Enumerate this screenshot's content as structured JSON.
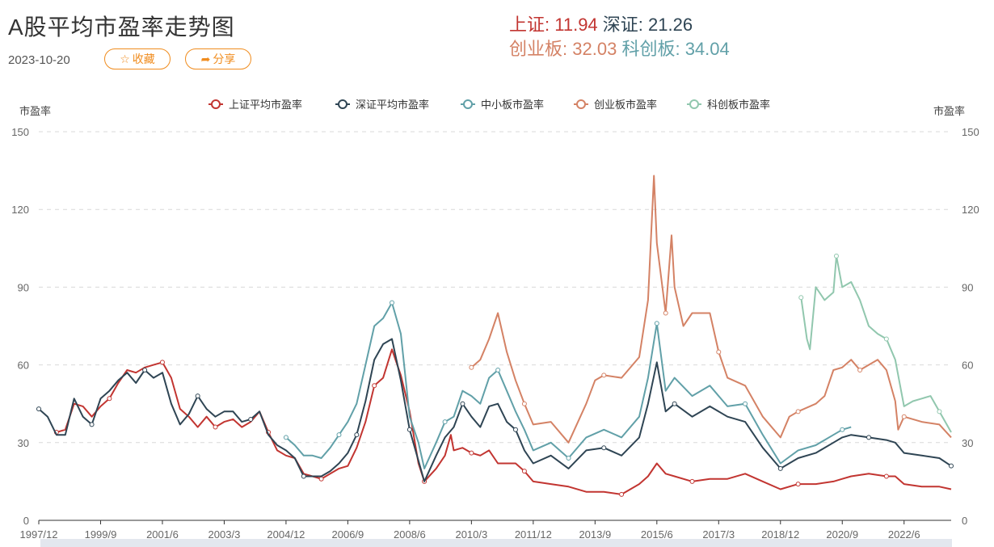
{
  "header": {
    "title": "A股平均市盈率走势图",
    "date": "2023-10-20",
    "fav_label": "收藏",
    "share_label": "分享",
    "fav_icon": "star-outline-icon",
    "share_icon": "share-arrow-icon",
    "accent": "#f08c1e"
  },
  "summary": {
    "sh_label": "上证:",
    "sh_value": "11.94",
    "sz_label": "深证:",
    "sz_value": "21.26",
    "cy_label": "创业板:",
    "cy_value": "32.03",
    "kc_label": "科创板:",
    "kc_value": "34.04",
    "colors": {
      "sh": "#c23531",
      "sz": "#2f4554",
      "cy": "#d48265",
      "kc": "#61a0a8"
    }
  },
  "chart_data": {
    "type": "line",
    "ylabel_left": "市盈率",
    "ylabel_right": "市盈率",
    "ylim": [
      0,
      150
    ],
    "yticks": [
      0,
      30,
      60,
      90,
      120,
      150
    ],
    "grid": true,
    "legend_position": "top-center",
    "x_range": [
      "1997/12",
      "2023/10"
    ],
    "x_ticks": [
      "1997/12",
      "1999/9",
      "2001/6",
      "2003/3",
      "2004/12",
      "2006/9",
      "2008/6",
      "2010/3",
      "2011/12",
      "2013/9",
      "2015/6",
      "2017/3",
      "2018/12",
      "2020/9",
      "2022/6"
    ],
    "series": [
      {
        "name": "上证平均市盈率",
        "color": "#c23531",
        "points": [
          [
            "1998/6",
            34
          ],
          [
            "1998/9",
            35
          ],
          [
            "1998/12",
            45
          ],
          [
            "1999/3",
            44
          ],
          [
            "1999/6",
            40
          ],
          [
            "1999/9",
            44
          ],
          [
            "1999/12",
            47
          ],
          [
            "2000/3",
            53
          ],
          [
            "2000/6",
            58
          ],
          [
            "2000/9",
            57
          ],
          [
            "2000/12",
            59
          ],
          [
            "2001/3",
            60
          ],
          [
            "2001/6",
            61
          ],
          [
            "2001/9",
            55
          ],
          [
            "2001/12",
            43
          ],
          [
            "2002/3",
            40
          ],
          [
            "2002/6",
            36
          ],
          [
            "2002/9",
            40
          ],
          [
            "2002/12",
            36
          ],
          [
            "2003/3",
            38
          ],
          [
            "2003/6",
            39
          ],
          [
            "2003/9",
            36
          ],
          [
            "2003/12",
            38
          ],
          [
            "2004/3",
            42
          ],
          [
            "2004/6",
            34
          ],
          [
            "2004/9",
            27
          ],
          [
            "2004/12",
            25
          ],
          [
            "2005/3",
            24
          ],
          [
            "2005/6",
            18
          ],
          [
            "2005/9",
            17
          ],
          [
            "2005/12",
            16
          ],
          [
            "2006/3",
            18
          ],
          [
            "2006/6",
            20
          ],
          [
            "2006/9",
            21
          ],
          [
            "2006/12",
            28
          ],
          [
            "2007/3",
            38
          ],
          [
            "2007/6",
            52
          ],
          [
            "2007/9",
            55
          ],
          [
            "2007/12",
            66
          ],
          [
            "2008/3",
            56
          ],
          [
            "2008/6",
            42
          ],
          [
            "2008/9",
            22
          ],
          [
            "2008/11",
            15
          ],
          [
            "2009/3",
            20
          ],
          [
            "2009/6",
            25
          ],
          [
            "2009/8",
            33
          ],
          [
            "2009/9",
            27
          ],
          [
            "2009/12",
            28
          ],
          [
            "2010/3",
            26
          ],
          [
            "2010/6",
            25
          ],
          [
            "2010/9",
            27
          ],
          [
            "2010/12",
            22
          ],
          [
            "2011/3",
            22
          ],
          [
            "2011/6",
            22
          ],
          [
            "2011/9",
            19
          ],
          [
            "2011/12",
            15
          ],
          [
            "2012/6",
            14
          ],
          [
            "2012/12",
            13
          ],
          [
            "2013/6",
            11
          ],
          [
            "2013/12",
            11
          ],
          [
            "2014/6",
            10
          ],
          [
            "2014/12",
            14
          ],
          [
            "2015/3",
            17
          ],
          [
            "2015/6",
            22
          ],
          [
            "2015/9",
            18
          ],
          [
            "2015/12",
            17
          ],
          [
            "2016/6",
            15
          ],
          [
            "2016/12",
            16
          ],
          [
            "2017/6",
            16
          ],
          [
            "2017/12",
            18
          ],
          [
            "2018/6",
            15
          ],
          [
            "2018/12",
            12
          ],
          [
            "2019/6",
            14
          ],
          [
            "2019/12",
            14
          ],
          [
            "2020/6",
            15
          ],
          [
            "2020/9",
            16
          ],
          [
            "2020/12",
            17
          ],
          [
            "2021/6",
            18
          ],
          [
            "2021/12",
            17
          ],
          [
            "2022/3",
            17
          ],
          [
            "2022/6",
            14
          ],
          [
            "2022/12",
            13
          ],
          [
            "2023/6",
            13
          ],
          [
            "2023/10",
            12
          ]
        ]
      },
      {
        "name": "深证平均市盈率",
        "color": "#2f4554",
        "points": [
          [
            "1997/12",
            43
          ],
          [
            "1998/3",
            40
          ],
          [
            "1998/6",
            33
          ],
          [
            "1998/9",
            33
          ],
          [
            "1998/12",
            47
          ],
          [
            "1999/3",
            40
          ],
          [
            "1999/6",
            37
          ],
          [
            "1999/9",
            47
          ],
          [
            "1999/12",
            50
          ],
          [
            "2000/3",
            54
          ],
          [
            "2000/6",
            57
          ],
          [
            "2000/9",
            53
          ],
          [
            "2000/12",
            58
          ],
          [
            "2001/3",
            55
          ],
          [
            "2001/6",
            57
          ],
          [
            "2001/9",
            45
          ],
          [
            "2001/12",
            37
          ],
          [
            "2002/3",
            41
          ],
          [
            "2002/6",
            48
          ],
          [
            "2002/9",
            43
          ],
          [
            "2002/12",
            40
          ],
          [
            "2003/3",
            42
          ],
          [
            "2003/6",
            42
          ],
          [
            "2003/9",
            38
          ],
          [
            "2003/12",
            39
          ],
          [
            "2004/3",
            42
          ],
          [
            "2004/6",
            33
          ],
          [
            "2004/9",
            29
          ],
          [
            "2004/12",
            27
          ],
          [
            "2005/3",
            24
          ],
          [
            "2005/6",
            17
          ],
          [
            "2005/9",
            17
          ],
          [
            "2005/12",
            17
          ],
          [
            "2006/3",
            19
          ],
          [
            "2006/6",
            22
          ],
          [
            "2006/9",
            26
          ],
          [
            "2006/12",
            33
          ],
          [
            "2007/3",
            46
          ],
          [
            "2007/6",
            62
          ],
          [
            "2007/9",
            68
          ],
          [
            "2007/12",
            70
          ],
          [
            "2008/3",
            54
          ],
          [
            "2008/6",
            35
          ],
          [
            "2008/9",
            23
          ],
          [
            "2008/11",
            15
          ],
          [
            "2009/3",
            25
          ],
          [
            "2009/6",
            32
          ],
          [
            "2009/9",
            36
          ],
          [
            "2009/12",
            45
          ],
          [
            "2010/3",
            40
          ],
          [
            "2010/6",
            36
          ],
          [
            "2010/9",
            44
          ],
          [
            "2010/12",
            45
          ],
          [
            "2011/3",
            38
          ],
          [
            "2011/6",
            35
          ],
          [
            "2011/9",
            27
          ],
          [
            "2011/12",
            22
          ],
          [
            "2012/6",
            25
          ],
          [
            "2012/12",
            20
          ],
          [
            "2013/6",
            27
          ],
          [
            "2013/12",
            28
          ],
          [
            "2014/6",
            25
          ],
          [
            "2014/12",
            32
          ],
          [
            "2015/3",
            45
          ],
          [
            "2015/6",
            61
          ],
          [
            "2015/9",
            42
          ],
          [
            "2015/12",
            45
          ],
          [
            "2016/6",
            40
          ],
          [
            "2016/12",
            44
          ],
          [
            "2017/6",
            40
          ],
          [
            "2017/12",
            38
          ],
          [
            "2018/6",
            28
          ],
          [
            "2018/12",
            20
          ],
          [
            "2019/6",
            24
          ],
          [
            "2019/12",
            26
          ],
          [
            "2020/6",
            30
          ],
          [
            "2020/9",
            32
          ],
          [
            "2020/12",
            33
          ],
          [
            "2021/6",
            32
          ],
          [
            "2021/12",
            31
          ],
          [
            "2022/3",
            30
          ],
          [
            "2022/6",
            26
          ],
          [
            "2022/12",
            25
          ],
          [
            "2023/6",
            24
          ],
          [
            "2023/10",
            21
          ]
        ]
      },
      {
        "name": "中小板市盈率",
        "color": "#61a0a8",
        "points": [
          [
            "2004/12",
            32
          ],
          [
            "2005/3",
            29
          ],
          [
            "2005/6",
            25
          ],
          [
            "2005/9",
            25
          ],
          [
            "2005/12",
            24
          ],
          [
            "2006/3",
            28
          ],
          [
            "2006/6",
            33
          ],
          [
            "2006/9",
            38
          ],
          [
            "2006/12",
            45
          ],
          [
            "2007/3",
            60
          ],
          [
            "2007/6",
            75
          ],
          [
            "2007/9",
            78
          ],
          [
            "2007/12",
            84
          ],
          [
            "2008/3",
            72
          ],
          [
            "2008/6",
            40
          ],
          [
            "2008/9",
            30
          ],
          [
            "2008/11",
            20
          ],
          [
            "2009/3",
            30
          ],
          [
            "2009/6",
            38
          ],
          [
            "2009/9",
            40
          ],
          [
            "2009/12",
            50
          ],
          [
            "2010/3",
            48
          ],
          [
            "2010/6",
            45
          ],
          [
            "2010/9",
            55
          ],
          [
            "2010/12",
            58
          ],
          [
            "2011/3",
            50
          ],
          [
            "2011/6",
            42
          ],
          [
            "2011/9",
            35
          ],
          [
            "2011/12",
            27
          ],
          [
            "2012/6",
            30
          ],
          [
            "2012/12",
            24
          ],
          [
            "2013/6",
            32
          ],
          [
            "2013/12",
            35
          ],
          [
            "2014/6",
            32
          ],
          [
            "2014/12",
            40
          ],
          [
            "2015/3",
            55
          ],
          [
            "2015/6",
            76
          ],
          [
            "2015/9",
            50
          ],
          [
            "2015/12",
            55
          ],
          [
            "2016/6",
            48
          ],
          [
            "2016/12",
            52
          ],
          [
            "2017/6",
            44
          ],
          [
            "2017/12",
            45
          ],
          [
            "2018/6",
            33
          ],
          [
            "2018/12",
            22
          ],
          [
            "2019/6",
            27
          ],
          [
            "2019/12",
            29
          ],
          [
            "2020/6",
            33
          ],
          [
            "2020/9",
            35
          ],
          [
            "2020/12",
            36
          ]
        ]
      },
      {
        "name": "创业板市盈率",
        "color": "#d48265",
        "points": [
          [
            "2010/3",
            59
          ],
          [
            "2010/6",
            62
          ],
          [
            "2010/9",
            70
          ],
          [
            "2010/12",
            80
          ],
          [
            "2011/3",
            65
          ],
          [
            "2011/6",
            54
          ],
          [
            "2011/9",
            45
          ],
          [
            "2011/12",
            37
          ],
          [
            "2012/6",
            38
          ],
          [
            "2012/12",
            30
          ],
          [
            "2013/6",
            45
          ],
          [
            "2013/9",
            54
          ],
          [
            "2013/12",
            56
          ],
          [
            "2014/6",
            55
          ],
          [
            "2014/12",
            63
          ],
          [
            "2015/3",
            85
          ],
          [
            "2015/5",
            133
          ],
          [
            "2015/6",
            107
          ],
          [
            "2015/9",
            80
          ],
          [
            "2015/11",
            110
          ],
          [
            "2015/12",
            90
          ],
          [
            "2016/3",
            75
          ],
          [
            "2016/6",
            80
          ],
          [
            "2016/12",
            80
          ],
          [
            "2017/3",
            65
          ],
          [
            "2017/6",
            55
          ],
          [
            "2017/12",
            52
          ],
          [
            "2018/6",
            40
          ],
          [
            "2018/12",
            32
          ],
          [
            "2019/3",
            40
          ],
          [
            "2019/6",
            42
          ],
          [
            "2019/12",
            45
          ],
          [
            "2020/3",
            48
          ],
          [
            "2020/6",
            58
          ],
          [
            "2020/9",
            59
          ],
          [
            "2020/12",
            62
          ],
          [
            "2021/3",
            58
          ],
          [
            "2021/6",
            60
          ],
          [
            "2021/9",
            62
          ],
          [
            "2021/12",
            58
          ],
          [
            "2022/3",
            46
          ],
          [
            "2022/4",
            35
          ],
          [
            "2022/6",
            40
          ],
          [
            "2022/12",
            38
          ],
          [
            "2023/6",
            37
          ],
          [
            "2023/10",
            32
          ]
        ]
      },
      {
        "name": "科创板市盈率",
        "color": "#91c7ae",
        "points": [
          [
            "2019/7",
            86
          ],
          [
            "2019/9",
            70
          ],
          [
            "2019/10",
            66
          ],
          [
            "2019/12",
            90
          ],
          [
            "2020/3",
            85
          ],
          [
            "2020/6",
            88
          ],
          [
            "2020/7",
            102
          ],
          [
            "2020/9",
            90
          ],
          [
            "2020/12",
            92
          ],
          [
            "2021/3",
            85
          ],
          [
            "2021/6",
            75
          ],
          [
            "2021/9",
            72
          ],
          [
            "2021/12",
            70
          ],
          [
            "2022/3",
            62
          ],
          [
            "2022/6",
            44
          ],
          [
            "2022/9",
            46
          ],
          [
            "2022/12",
            47
          ],
          [
            "2023/3",
            48
          ],
          [
            "2023/6",
            42
          ],
          [
            "2023/10",
            34
          ]
        ]
      }
    ]
  }
}
